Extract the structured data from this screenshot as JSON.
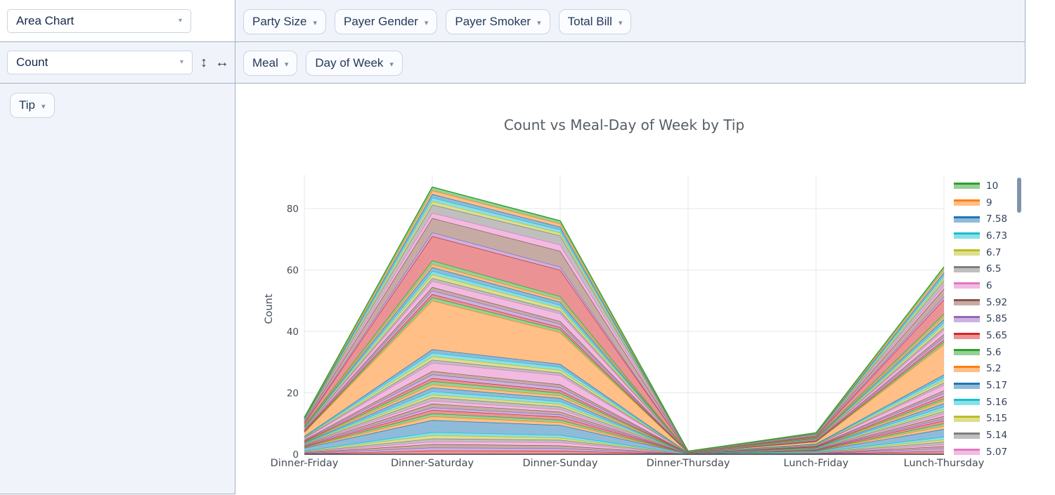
{
  "icons": {
    "caret": "▾",
    "move_vertical": "↕",
    "move_horizontal": "↔"
  },
  "controls": {
    "renderer_value": "Area Chart",
    "aggregator_value": "Count"
  },
  "attributes": {
    "unused": [
      "Party Size",
      "Payer Gender",
      "Payer Smoker",
      "Total Bill"
    ],
    "cols": [
      "Meal",
      "Day of Week"
    ],
    "rows": [
      "Tip"
    ]
  },
  "colors": {
    "panel_bg": "#f0f4fa",
    "panel_border": "#a2b1c6",
    "button_border": "#c9d4e4",
    "button_bg": "#fafcff",
    "text_navy": "#24395a",
    "grid": "#e3e8ee",
    "axis_line": "#3f454c",
    "scrollbar": "#8292ac"
  },
  "chart_data": {
    "type": "area",
    "stacked": true,
    "title": "Count vs Meal-Day of Week by Tip",
    "ylabel": "Count",
    "xlabel": "",
    "categories": [
      "Dinner-Friday",
      "Dinner-Saturday",
      "Dinner-Sunday",
      "Dinner-Thursday",
      "Lunch-Friday",
      "Lunch-Thursday"
    ],
    "totals": [
      12,
      87,
      76,
      1,
      7,
      61
    ],
    "yticks": [
      0,
      20,
      40,
      60,
      80
    ],
    "ylim": [
      0,
      92
    ],
    "grid": true,
    "legend_position": "right",
    "legend_scrollbar": true,
    "legend_labels": [
      "10",
      "9",
      "7.58",
      "6.73",
      "6.7",
      "6.5",
      "6",
      "5.92",
      "5.85",
      "5.65",
      "5.6",
      "5.2",
      "5.17",
      "5.16",
      "5.15",
      "5.14",
      "5.07"
    ],
    "palette_line": [
      "#2ca02c",
      "#ff7f0e",
      "#1f77b4",
      "#17becf",
      "#bcbd22",
      "#7f7f7f",
      "#e377c2",
      "#8c564b",
      "#9467bd",
      "#d62728"
    ],
    "palette_fill": [
      "#96d096",
      "#ffbf87",
      "#8fbbda",
      "#8bdfe7",
      "#dede91",
      "#bfbfbf",
      "#f1bbe1",
      "#c6aba5",
      "#cab3de",
      "#eb9394"
    ],
    "band_weights": [
      [
        0.5,
        1,
        1,
        0.2,
        0.5,
        1
      ],
      [
        0.4,
        0.8,
        0.7,
        0,
        0.3,
        0.8
      ],
      [
        0.5,
        0.9,
        0.8,
        0,
        0.4,
        0.7
      ],
      [
        0.4,
        0.7,
        0.9,
        0,
        0.3,
        0.6
      ],
      [
        0.5,
        0.8,
        0.7,
        0.2,
        0.4,
        0.8
      ],
      [
        0.4,
        0.9,
        0.6,
        0,
        0.3,
        0.7
      ],
      [
        0.5,
        0.8,
        0.8,
        0,
        0.4,
        0.9
      ],
      [
        2.5,
        3.2,
        2.8,
        0.3,
        1.2,
        2.4
      ],
      [
        0.5,
        1,
        0.8,
        0,
        0.4,
        1
      ],
      [
        0.4,
        0.8,
        0.7,
        0,
        0.3,
        0.8
      ],
      [
        0.5,
        0.9,
        0.9,
        0.2,
        0.5,
        0.9
      ],
      [
        0.4,
        0.7,
        0.6,
        0,
        0.3,
        0.6
      ],
      [
        0.6,
        1,
        0.8,
        0,
        0.4,
        0.8
      ],
      [
        0.4,
        0.8,
        0.7,
        0,
        0.3,
        0.7
      ],
      [
        0.5,
        0.9,
        0.8,
        0.2,
        0.4,
        0.8
      ],
      [
        0.4,
        0.7,
        0.7,
        0,
        0.3,
        0.6
      ],
      [
        0.5,
        0.9,
        0.8,
        0,
        0.4,
        0.9
      ],
      [
        0.6,
        1,
        0.9,
        0,
        0.5,
        1
      ],
      [
        0.5,
        0.8,
        0.7,
        0.2,
        0.4,
        0.8
      ],
      [
        0.4,
        0.9,
        0.8,
        0,
        0.3,
        0.7
      ],
      [
        0.5,
        0.8,
        0.7,
        0,
        0.4,
        0.8
      ],
      [
        0.6,
        1,
        0.9,
        0,
        0.5,
        0.9
      ],
      [
        0.5,
        0.9,
        0.8,
        0.2,
        0.4,
        0.8
      ],
      [
        1.2,
        2.2,
        2.6,
        0,
        0.8,
        1.8
      ],
      [
        0.5,
        0.8,
        0.7,
        0,
        0.4,
        0.7
      ],
      [
        0.4,
        0.9,
        0.8,
        0,
        0.3,
        0.8
      ],
      [
        0.6,
        1,
        0.9,
        0.2,
        0.5,
        0.9
      ],
      [
        0.5,
        0.9,
        0.8,
        0,
        0.4,
        0.8
      ],
      [
        3.5,
        13,
        9,
        0.4,
        2.2,
        9.5
      ],
      [
        0.5,
        0.9,
        0.8,
        0,
        0.4,
        0.8
      ],
      [
        0.4,
        0.8,
        0.7,
        0,
        0.3,
        0.7
      ],
      [
        0.6,
        1,
        0.9,
        0.2,
        0.5,
        0.9
      ],
      [
        0.5,
        0.9,
        0.8,
        0,
        0.4,
        0.8
      ],
      [
        0.8,
        1.6,
        2.2,
        0,
        0.6,
        1.4
      ],
      [
        0.5,
        0.8,
        0.7,
        0,
        0.4,
        0.7
      ],
      [
        0.6,
        1,
        0.9,
        0.2,
        0.5,
        0.9
      ],
      [
        0.5,
        0.9,
        0.8,
        0,
        0.4,
        0.8
      ],
      [
        0.6,
        1,
        0.9,
        0,
        0.5,
        0.9
      ],
      [
        0.5,
        0.8,
        0.7,
        0,
        0.4,
        0.8
      ],
      [
        0.6,
        1,
        0.9,
        0.2,
        0.5,
        0.9
      ],
      [
        1.6,
        6.5,
        7.5,
        0,
        1,
        4.5
      ],
      [
        0.6,
        1,
        0.9,
        0,
        0.5,
        0.9
      ],
      [
        1,
        3.8,
        4.5,
        0.2,
        0.7,
        2.5
      ],
      [
        0.5,
        1.4,
        1.8,
        0,
        0.4,
        1
      ],
      [
        0.8,
        2.2,
        2.6,
        0,
        0.6,
        1.6
      ],
      [
        0.5,
        0.9,
        0.8,
        0.2,
        0.4,
        0.8
      ],
      [
        0.6,
        1,
        0.9,
        0,
        0.5,
        0.9
      ],
      [
        0.5,
        0.9,
        0.8,
        0,
        0.4,
        0.8
      ],
      [
        0.6,
        1,
        0.9,
        0,
        0.5,
        0.9
      ],
      [
        0.5,
        0.9,
        0.8,
        0.2,
        0.4,
        0.8
      ]
    ]
  }
}
